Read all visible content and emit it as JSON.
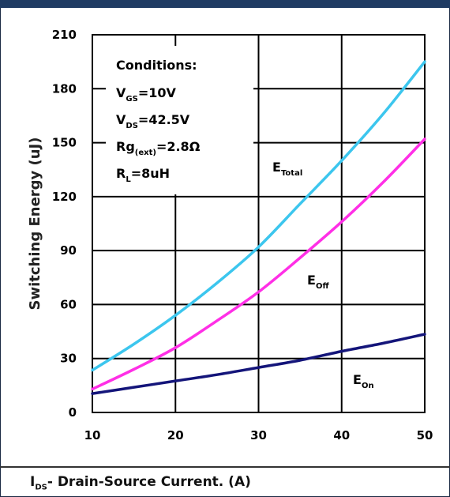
{
  "chart_data": {
    "type": "line",
    "ylabel": "Switching Energy (uJ)",
    "xlabel": {
      "main": "I",
      "sub": "DS",
      "rest": "- Drain-Source Current. (A)"
    },
    "xlim": [
      10,
      50
    ],
    "ylim": [
      0,
      210
    ],
    "xticks": [
      10,
      20,
      30,
      40,
      50
    ],
    "yticks": [
      0,
      30,
      60,
      90,
      120,
      150,
      180,
      210
    ],
    "grid": true,
    "conditions": {
      "title": "Conditions:",
      "lines": [
        {
          "main": "V",
          "sub": "GS",
          "rest": "=10V"
        },
        {
          "main": "V",
          "sub": "DS",
          "rest": "=42.5V"
        },
        {
          "main": "Rg",
          "sub": "(ext)",
          "rest": "=2.8Ω"
        },
        {
          "main": "R",
          "sub": "L",
          "rest": "=8uH"
        }
      ]
    },
    "series": [
      {
        "name": "E_Total",
        "label_main": "E",
        "label_sub": "Total",
        "color": "#3cc6ee",
        "x": [
          10,
          15,
          20,
          25,
          30,
          35,
          40,
          45,
          50
        ],
        "y": [
          23.5,
          38,
          54,
          72,
          92,
          116,
          140,
          166,
          195
        ]
      },
      {
        "name": "E_Off",
        "label_main": "E",
        "label_sub": "Off",
        "color": "#ff2fe6",
        "x": [
          10,
          15,
          20,
          25,
          30,
          35,
          40,
          45,
          50
        ],
        "y": [
          13,
          24,
          36,
          51,
          67,
          86,
          106,
          128,
          152
        ]
      },
      {
        "name": "E_On",
        "label_main": "E",
        "label_sub": "On",
        "color": "#14157a",
        "x": [
          10,
          15,
          20,
          25,
          30,
          35,
          40,
          45,
          50
        ],
        "y": [
          10.5,
          14,
          17.5,
          21,
          25,
          29,
          34,
          38.5,
          43.5
        ]
      }
    ]
  }
}
